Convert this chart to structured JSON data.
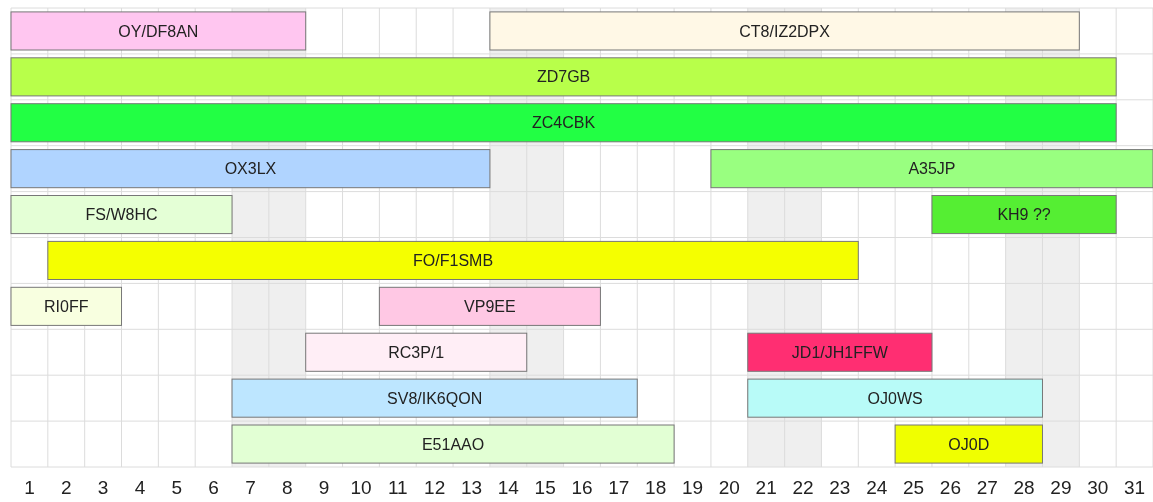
{
  "chart_data": {
    "type": "bar",
    "orientation": "horizontal",
    "categories": [
      null,
      null,
      null,
      null,
      null,
      null,
      null,
      null,
      null,
      null
    ],
    "xlim": [
      0.5,
      31.5
    ],
    "xticks": [
      1,
      2,
      3,
      4,
      5,
      6,
      7,
      8,
      9,
      10,
      11,
      12,
      13,
      14,
      15,
      16,
      17,
      18,
      19,
      20,
      21,
      22,
      23,
      24,
      25,
      26,
      27,
      28,
      29,
      30,
      31
    ],
    "grid": true,
    "bands": [
      {
        "axis": "x",
        "from": 6.5,
        "to": 8.5,
        "color": "#efefef"
      },
      {
        "axis": "x",
        "from": 13.5,
        "to": 15.5,
        "color": "#efefef"
      },
      {
        "axis": "x",
        "from": 20.5,
        "to": 22.5,
        "color": "#efefef"
      },
      {
        "axis": "x",
        "from": 27.5,
        "to": 29.5,
        "color": "#efefef"
      }
    ],
    "series": [
      {
        "base": [
          0.5,
          0.5,
          0.5,
          0.5,
          0.5,
          1.5,
          0.5,
          8.5,
          6.5,
          6.5
        ],
        "values": [
          8,
          30,
          30,
          13,
          6,
          22,
          3,
          6,
          11,
          12
        ],
        "colors": [
          "#ffc6f0",
          "#b8ff4a",
          "#22ff44",
          "#b0d4ff",
          "#e4ffd6",
          "#f5ff00",
          "#f8ffe0",
          "#ffeef6",
          "#bde6ff",
          "#e2ffd4"
        ],
        "value_labels": [
          "OY/DF8AN",
          "ZD7GB",
          "ZC4CBK",
          "OX3LX",
          "FS/W8HC",
          "FO/F1SMB",
          "RI0FF",
          "RC3P/1",
          "SV8/IK6QON",
          "E51AAO"
        ]
      },
      {
        "base": [
          13.5,
          null,
          null,
          19.5,
          25.5,
          null,
          10.5,
          20.5,
          20.5,
          24.5
        ],
        "values": [
          16,
          null,
          null,
          12,
          5,
          null,
          6,
          5,
          8,
          4
        ],
        "colors": [
          "#fff8e6",
          null,
          null,
          "#99ff80",
          "#55ee33",
          null,
          "#ffc8e4",
          "#ff2e72",
          "#b8fbf8",
          "#f0ff00"
        ],
        "value_labels": [
          "CT8/IZ2DPX",
          null,
          null,
          "A35JP",
          "KH9 ??",
          null,
          "VP9EE",
          "JD1/JH1FFW",
          "OJ0WS",
          "OJ0D"
        ]
      }
    ]
  }
}
